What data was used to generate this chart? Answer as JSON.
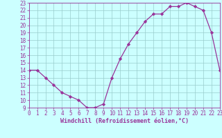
{
  "hours": [
    0,
    1,
    2,
    3,
    4,
    5,
    6,
    7,
    8,
    9,
    10,
    11,
    12,
    13,
    14,
    15,
    16,
    17,
    18,
    19,
    20,
    21,
    22,
    23
  ],
  "values": [
    14,
    14,
    13,
    12,
    11,
    10.5,
    10,
    9,
    9,
    9.5,
    13,
    15.5,
    17.5,
    19,
    20.5,
    21.5,
    21.5,
    22.5,
    22.5,
    23,
    22.5,
    22,
    19,
    14
  ],
  "line_color": "#993399",
  "marker_color": "#993399",
  "bg_color": "#ccffff",
  "grid_color": "#99cccc",
  "xlabel": "Windchill (Refroidissement éolien,°C)",
  "ylim": [
    9,
    23
  ],
  "xlim": [
    0,
    23
  ],
  "yticks": [
    9,
    10,
    11,
    12,
    13,
    14,
    15,
    16,
    17,
    18,
    19,
    20,
    21,
    22,
    23
  ],
  "xticks": [
    0,
    1,
    2,
    3,
    4,
    5,
    6,
    7,
    8,
    9,
    10,
    11,
    12,
    13,
    14,
    15,
    16,
    17,
    18,
    19,
    20,
    21,
    22,
    23
  ],
  "tick_fontsize": 5.5,
  "xlabel_fontsize": 6.0
}
